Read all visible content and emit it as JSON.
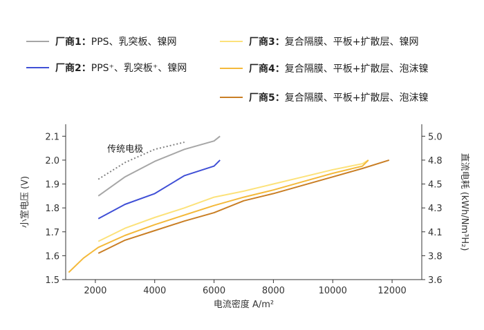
{
  "chart_data": {
    "type": "line",
    "xlabel": "电流密度 A/m²",
    "ylabel": "小室电压 (V)",
    "y2label": "直流电耗 (kWh/Nm³H₂)",
    "xlim": [
      1000,
      13000
    ],
    "ylim": [
      1.5,
      2.15
    ],
    "xticks": [
      2000,
      4000,
      6000,
      8000,
      10000,
      12000
    ],
    "yticks": [
      1.5,
      1.6,
      1.7,
      1.8,
      1.9,
      2.0,
      2.1
    ],
    "ytick_labels": [
      "1.5",
      "1.6",
      "1.7",
      "1.8",
      "1.9",
      "2.0",
      "2.1"
    ],
    "y2ticks": [
      {
        "label": "3.6",
        "at": 1.5
      },
      {
        "label": "3.8",
        "at": 1.6
      },
      {
        "label": "4.1",
        "at": 1.7
      },
      {
        "label": "4.3",
        "at": 1.8
      },
      {
        "label": "4.5",
        "at": 1.9
      },
      {
        "label": "4.8",
        "at": 2.0
      },
      {
        "label": "5.0",
        "at": 2.1
      }
    ],
    "grid": false,
    "legend_position": "top",
    "annotation": {
      "text": "传统电极",
      "x": 2400,
      "y": 2.035
    },
    "series": [
      {
        "name_bold": "厂商1：",
        "name_rest": "PPS、乳突板、镍网",
        "color": "#a6a6a6",
        "x": [
          2100,
          3000,
          4000,
          5000,
          6000,
          6200
        ],
        "y": [
          1.85,
          1.93,
          1.995,
          2.045,
          2.08,
          2.1
        ]
      },
      {
        "name_bold": "厂商2：",
        "name_rest": "PPS⁺、乳突板⁺、镍网",
        "color": "#3f4fd6",
        "x": [
          2100,
          3000,
          4000,
          5000,
          6000,
          6200
        ],
        "y": [
          1.755,
          1.815,
          1.86,
          1.935,
          1.975,
          2.0
        ]
      },
      {
        "name_bold": "厂商3：",
        "name_rest": "复合隔膜、平板+扩散层、镍网",
        "color": "#fce27a",
        "x": [
          2100,
          3000,
          4000,
          5000,
          6000,
          7000,
          8000,
          9000,
          10000,
          11000,
          11200
        ],
        "y": [
          1.66,
          1.715,
          1.76,
          1.8,
          1.845,
          1.87,
          1.9,
          1.93,
          1.96,
          1.985,
          2.0
        ]
      },
      {
        "name_bold": "厂商4：",
        "name_rest": "复合隔膜、平板+扩散层、泡沫镍",
        "color": "#f4b93a",
        "x": [
          1100,
          1600,
          2100,
          3000,
          4000,
          5000,
          6000,
          7000,
          8000,
          9000,
          10000,
          11000,
          11200
        ],
        "y": [
          1.53,
          1.59,
          1.635,
          1.685,
          1.73,
          1.77,
          1.81,
          1.845,
          1.875,
          1.91,
          1.945,
          1.975,
          2.0
        ]
      },
      {
        "name_bold": "厂商5：",
        "name_rest": "复合隔膜、平板+扩散层、泡沫镍",
        "color": "#c97e24",
        "x": [
          2100,
          3000,
          4000,
          5000,
          6000,
          7000,
          8000,
          9000,
          10000,
          11000,
          11900
        ],
        "y": [
          1.61,
          1.665,
          1.705,
          1.745,
          1.78,
          1.83,
          1.86,
          1.895,
          1.93,
          1.965,
          2.0
        ]
      }
    ],
    "reference_curve": {
      "style": "dotted",
      "color": "#808080",
      "x": [
        2100,
        3000,
        4000,
        5000
      ],
      "y": [
        1.92,
        1.99,
        2.045,
        2.075
      ]
    }
  }
}
